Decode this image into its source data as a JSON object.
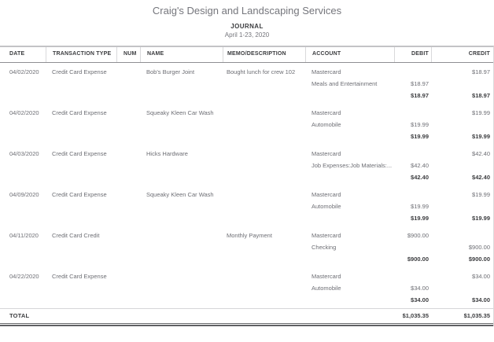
{
  "report_header": {
    "company_name": "Craig's Design and Landscaping Services",
    "report_title": "JOURNAL",
    "date_range": "April 1-23, 2020"
  },
  "table": {
    "columns": [
      {
        "key": "date",
        "label": "DATE"
      },
      {
        "key": "type",
        "label": "TRANSACTION TYPE"
      },
      {
        "key": "num",
        "label": "NUM"
      },
      {
        "key": "name",
        "label": "NAME"
      },
      {
        "key": "memo",
        "label": "MEMO/DESCRIPTION"
      },
      {
        "key": "account",
        "label": "ACCOUNT"
      },
      {
        "key": "debit",
        "label": "DEBIT"
      },
      {
        "key": "credit",
        "label": "CREDIT"
      }
    ],
    "transactions": [
      {
        "date": "04/02/2020",
        "type": "Credit Card Expense",
        "num": "",
        "name": "Bob's Burger Joint",
        "memo": "Bought lunch for crew 102",
        "splits": [
          {
            "account": "Mastercard",
            "debit": "",
            "credit": "$18.97"
          },
          {
            "account": "Meals and Entertainment",
            "debit": "$18.97",
            "credit": ""
          }
        ],
        "total_debit": "$18.97",
        "total_credit": "$18.97"
      },
      {
        "date": "04/02/2020",
        "type": "Credit Card Expense",
        "num": "",
        "name": "Squeaky Kleen Car Wash",
        "memo": "",
        "splits": [
          {
            "account": "Mastercard",
            "debit": "",
            "credit": "$19.99"
          },
          {
            "account": "Automobile",
            "debit": "$19.99",
            "credit": ""
          }
        ],
        "total_debit": "$19.99",
        "total_credit": "$19.99"
      },
      {
        "date": "04/03/2020",
        "type": "Credit Card Expense",
        "num": "",
        "name": "Hicks Hardware",
        "memo": "",
        "splits": [
          {
            "account": "Mastercard",
            "debit": "",
            "credit": "$42.40"
          },
          {
            "account": "Job Expenses:Job Materials:...",
            "debit": "$42.40",
            "credit": ""
          }
        ],
        "total_debit": "$42.40",
        "total_credit": "$42.40"
      },
      {
        "date": "04/09/2020",
        "type": "Credit Card Expense",
        "num": "",
        "name": "Squeaky Kleen Car Wash",
        "memo": "",
        "splits": [
          {
            "account": "Mastercard",
            "debit": "",
            "credit": "$19.99"
          },
          {
            "account": "Automobile",
            "debit": "$19.99",
            "credit": ""
          }
        ],
        "total_debit": "$19.99",
        "total_credit": "$19.99"
      },
      {
        "date": "04/11/2020",
        "type": "Credit Card Credit",
        "num": "",
        "name": "",
        "memo": "Monthly Payment",
        "splits": [
          {
            "account": "Mastercard",
            "debit": "$900.00",
            "credit": ""
          },
          {
            "account": "Checking",
            "debit": "",
            "credit": "$900.00"
          }
        ],
        "total_debit": "$900.00",
        "total_credit": "$900.00"
      },
      {
        "date": "04/22/2020",
        "type": "Credit Card Expense",
        "num": "",
        "name": "",
        "memo": "",
        "splits": [
          {
            "account": "Mastercard",
            "debit": "",
            "credit": "$34.00"
          },
          {
            "account": "Automobile",
            "debit": "$34.00",
            "credit": ""
          }
        ],
        "total_debit": "$34.00",
        "total_credit": "$34.00"
      }
    ],
    "total_row": {
      "label": "TOTAL",
      "debit": "$1,035.35",
      "credit": "$1,035.35"
    }
  },
  "colors": {
    "text_primary": "#3b3c3f",
    "text_secondary": "#6d6e74",
    "rule_dark": "#606164",
    "rule_medium": "#8f8f92",
    "rule_light": "#d9d9db",
    "table_top_border": "#c3c3c6"
  }
}
